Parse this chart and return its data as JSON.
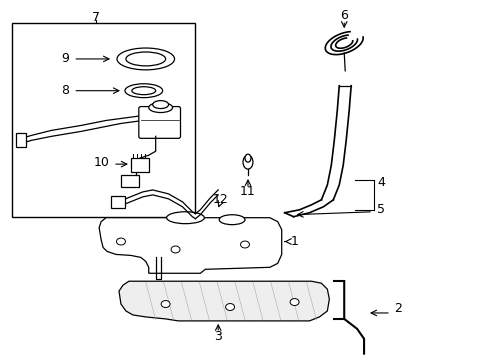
{
  "background_color": "#ffffff",
  "line_color": "#000000",
  "fig_width": 4.89,
  "fig_height": 3.6,
  "dpi": 100,
  "font_size": 9
}
